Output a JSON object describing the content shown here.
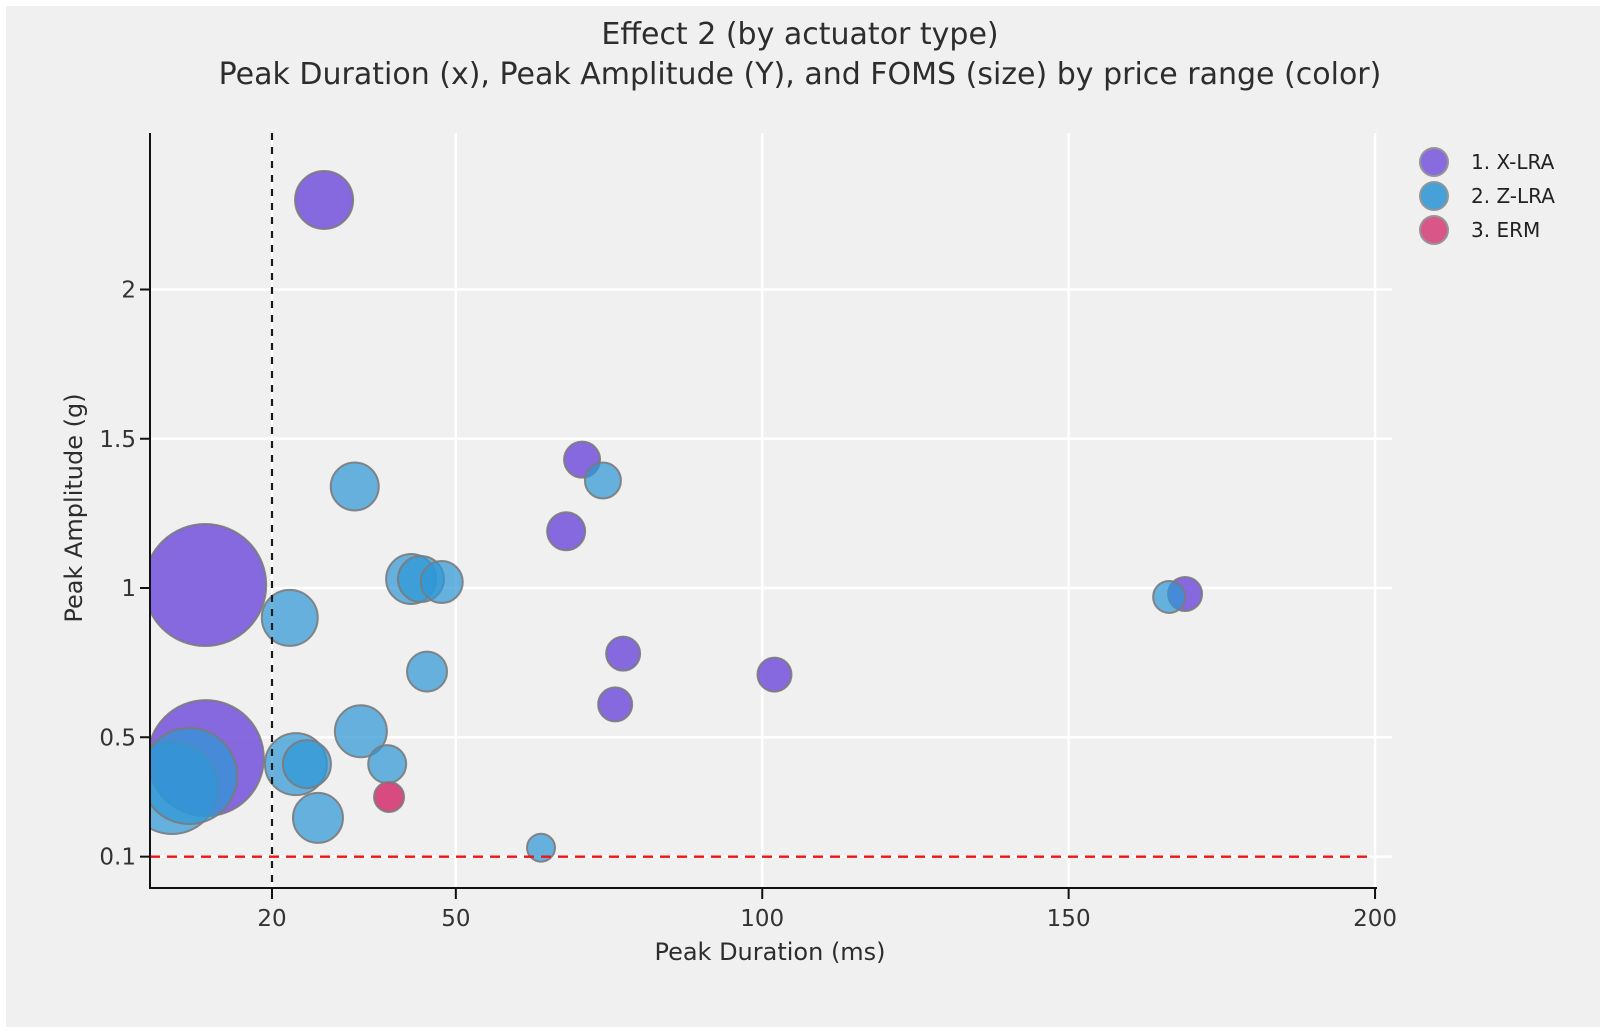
{
  "chart_data": {
    "type": "scatter",
    "subtype": "bubble",
    "title": "Effect 2 (by actuator type)",
    "subtitle": "Peak Duration (x), Peak Amplitude (Y), and FOMS (size) by price range (color)",
    "xlabel": "Peak Duration (ms)",
    "ylabel": "Peak Amplitude (g)",
    "x_ticks": [
      20,
      50,
      100,
      150,
      200
    ],
    "y_ticks": [
      0.1,
      0.5,
      1,
      1.5,
      2
    ],
    "xlim": [
      0,
      203
    ],
    "ylim": [
      0,
      2.52
    ],
    "grid": true,
    "legend_position": "top-right",
    "size_encoding": "FOMS (bubble radius in px, values not labeled on chart)",
    "reference_lines": {
      "vertical_x": 20,
      "vertical_color": "#1a1a1a",
      "horizontal_y": 0.1,
      "horizontal_color": "#f01515"
    },
    "series": [
      {
        "name": "1. X-LRA",
        "color": "#7a59dd",
        "fill_opacity": 0.9,
        "points": [
          {
            "x": 28.5,
            "y": 2.3,
            "r": 29
          },
          {
            "x": 70.6,
            "y": 1.43,
            "r": 18
          },
          {
            "x": 68.0,
            "y": 1.19,
            "r": 19
          },
          {
            "x": 9.1,
            "y": 1.01,
            "r": 61
          },
          {
            "x": 9.2,
            "y": 0.43,
            "r": 58
          },
          {
            "x": 77.3,
            "y": 0.78,
            "r": 17
          },
          {
            "x": 76.0,
            "y": 0.61,
            "r": 17
          },
          {
            "x": 102.0,
            "y": 0.71,
            "r": 17
          },
          {
            "x": 169.0,
            "y": 0.98,
            "r": 17
          }
        ]
      },
      {
        "name": "2. Z-LRA",
        "color": "#2f97d5",
        "fill_opacity": 0.72,
        "points": [
          {
            "x": 33.5,
            "y": 1.34,
            "r": 24
          },
          {
            "x": 74.0,
            "y": 1.36,
            "r": 18
          },
          {
            "x": 22.9,
            "y": 0.9,
            "r": 28
          },
          {
            "x": 42.7,
            "y": 1.03,
            "r": 25
          },
          {
            "x": 44.3,
            "y": 1.03,
            "r": 23
          },
          {
            "x": 47.7,
            "y": 1.02,
            "r": 21
          },
          {
            "x": 45.3,
            "y": 0.72,
            "r": 20
          },
          {
            "x": 34.5,
            "y": 0.52,
            "r": 26
          },
          {
            "x": 3.7,
            "y": 0.33,
            "r": 46
          },
          {
            "x": 6.5,
            "y": 0.37,
            "r": 48
          },
          {
            "x": 23.9,
            "y": 0.41,
            "r": 31
          },
          {
            "x": 25.7,
            "y": 0.41,
            "r": 24
          },
          {
            "x": 38.8,
            "y": 0.41,
            "r": 19
          },
          {
            "x": 27.5,
            "y": 0.23,
            "r": 25
          },
          {
            "x": 63.9,
            "y": 0.13,
            "r": 14
          },
          {
            "x": 166.4,
            "y": 0.97,
            "r": 16
          }
        ]
      },
      {
        "name": "3. ERM",
        "color": "#d6417a",
        "fill_opacity": 0.95,
        "points": [
          {
            "x": 39.1,
            "y": 0.3,
            "r": 15
          }
        ]
      }
    ],
    "palette": {
      "background": "#f0f0f0",
      "gridline": "#ffffff",
      "axis": "#111111",
      "bubble_stroke": "#7b7b7b",
      "text": "#2d2d2d",
      "tick_text": "#333333"
    }
  }
}
